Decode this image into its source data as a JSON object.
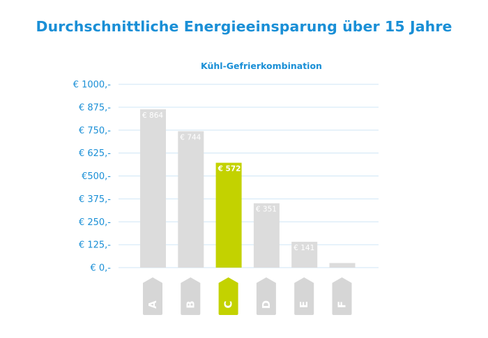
{
  "chart_data": {
    "type": "bar",
    "title": "Durchschnittliche Energieeinsparung über 15 Jahre",
    "subtitle": "Kühl-Gefrierkombination",
    "categories": [
      "A",
      "B",
      "C",
      "D",
      "E",
      "F"
    ],
    "values": [
      864,
      744,
      572,
      351,
      141,
      25
    ],
    "data_labels": [
      "€ 864",
      "€ 744",
      "€ 572",
      "€ 351",
      "€ 141",
      ""
    ],
    "highlight_category": "C",
    "yticks": [
      0,
      125,
      250,
      375,
      500,
      625,
      750,
      875,
      1000
    ],
    "ytick_labels": [
      "€ 0,-",
      "€ 125,-",
      "€ 250,-",
      "€ 375,-",
      "€500,-",
      "€ 625,-",
      "€ 750,-",
      "€ 875,-",
      "€ 1000,-"
    ],
    "ylim": [
      0,
      1000
    ],
    "xlabel": "",
    "ylabel": "",
    "grid": true,
    "colors": {
      "text": "#1a8fd6",
      "bar": "#dcdcdc",
      "highlight": "#c3d200",
      "grid": "#cfe6f6",
      "tag": "#d6d6d6"
    }
  }
}
